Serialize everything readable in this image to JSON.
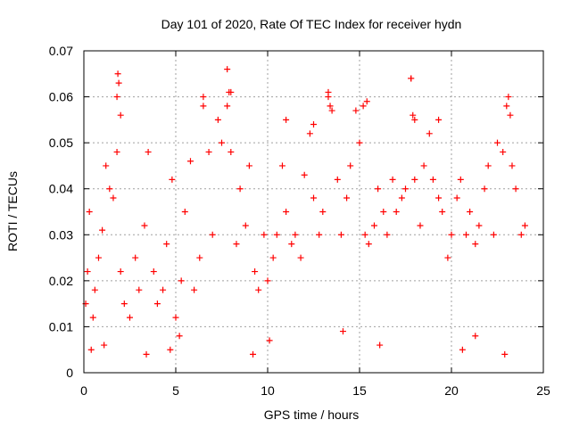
{
  "chart_data": {
    "type": "scatter",
    "title": "Day 101 of 2020, Rate Of TEC Index for receiver hydn",
    "xlabel": "GPS time / hours",
    "ylabel": "ROTI / TECUs",
    "xlim": [
      0,
      25
    ],
    "ylim": [
      0,
      0.07
    ],
    "x_ticks": [
      "0",
      "5",
      "10",
      "15",
      "20",
      "25"
    ],
    "y_ticks": [
      "0",
      "0.01",
      "0.02",
      "0.03",
      "0.04",
      "0.05",
      "0.06",
      "0.07"
    ],
    "x_tick_values": [
      0,
      5,
      10,
      15,
      20,
      25
    ],
    "y_tick_values": [
      0,
      0.01,
      0.02,
      0.03,
      0.04,
      0.05,
      0.06,
      0.07
    ],
    "grid": true,
    "legend": "none",
    "marker": "+",
    "color": "#ff0000",
    "series": [
      {
        "x": [
          0.1,
          0.2,
          0.3,
          0.5,
          0.6,
          0.8,
          1.0,
          1.2,
          1.4,
          1.6,
          1.8,
          2.0,
          2.2,
          2.5,
          2.8,
          3.0,
          3.3,
          3.5,
          3.8,
          4.0,
          4.3,
          4.5,
          4.8,
          5.0,
          5.3,
          5.5,
          5.8,
          6.0,
          6.3,
          6.5,
          6.8,
          7.0,
          7.3,
          7.5,
          7.8,
          8.0,
          8.3,
          8.5,
          8.8,
          9.0,
          9.3,
          9.5,
          9.8,
          10.0,
          10.3,
          10.5,
          10.8,
          11.0,
          11.3,
          11.5,
          11.8,
          12.0,
          12.3,
          12.5,
          12.8,
          13.0,
          13.3,
          13.5,
          13.8,
          14.0,
          14.3,
          14.5,
          14.8,
          15.0,
          15.3,
          15.5,
          15.8,
          16.0,
          16.3,
          16.5,
          16.8,
          17.0,
          17.3,
          17.5,
          17.8,
          18.0,
          18.3,
          18.5,
          18.8,
          19.0,
          19.3,
          19.5,
          19.8,
          20.0,
          20.3,
          20.5,
          20.8,
          21.0,
          21.3,
          21.5,
          21.8,
          22.0,
          22.3,
          22.5,
          22.8,
          23.0,
          23.3,
          23.5,
          23.8,
          24.0,
          1.85,
          1.9,
          7.8,
          7.9,
          13.3,
          13.4,
          17.8,
          17.9,
          18.0,
          23.1,
          23.2,
          1.8,
          2.0,
          6.5,
          8.0,
          12.5,
          15.2,
          15.4,
          19.3,
          11.0,
          0.4,
          1.1,
          3.4,
          4.7,
          9.2,
          16.1,
          20.6,
          22.9,
          5.2,
          10.1,
          14.1,
          21.3
        ],
        "y": [
          0.015,
          0.022,
          0.035,
          0.012,
          0.018,
          0.025,
          0.031,
          0.045,
          0.04,
          0.038,
          0.048,
          0.022,
          0.015,
          0.012,
          0.025,
          0.018,
          0.032,
          0.048,
          0.022,
          0.015,
          0.018,
          0.028,
          0.042,
          0.012,
          0.02,
          0.035,
          0.046,
          0.018,
          0.025,
          0.058,
          0.048,
          0.03,
          0.055,
          0.05,
          0.058,
          0.048,
          0.028,
          0.04,
          0.032,
          0.045,
          0.022,
          0.018,
          0.03,
          0.02,
          0.025,
          0.03,
          0.045,
          0.035,
          0.028,
          0.03,
          0.025,
          0.043,
          0.052,
          0.038,
          0.03,
          0.035,
          0.06,
          0.057,
          0.042,
          0.03,
          0.038,
          0.045,
          0.057,
          0.05,
          0.03,
          0.028,
          0.032,
          0.04,
          0.035,
          0.03,
          0.042,
          0.035,
          0.038,
          0.04,
          0.064,
          0.042,
          0.032,
          0.045,
          0.052,
          0.042,
          0.038,
          0.035,
          0.025,
          0.03,
          0.038,
          0.042,
          0.03,
          0.035,
          0.028,
          0.032,
          0.04,
          0.045,
          0.03,
          0.05,
          0.048,
          0.058,
          0.045,
          0.04,
          0.03,
          0.032,
          0.065,
          0.063,
          0.066,
          0.061,
          0.061,
          0.058,
          0.064,
          0.056,
          0.055,
          0.06,
          0.056,
          0.06,
          0.056,
          0.06,
          0.061,
          0.054,
          0.058,
          0.059,
          0.055,
          0.055,
          0.005,
          0.006,
          0.004,
          0.005,
          0.004,
          0.006,
          0.005,
          0.004,
          0.008,
          0.007,
          0.009,
          0.008
        ]
      }
    ]
  }
}
